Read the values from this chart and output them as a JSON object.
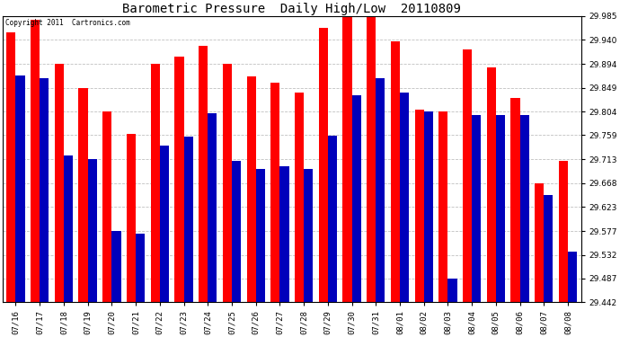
{
  "title": "Barometric Pressure  Daily High/Low  20110809",
  "copyright": "Copyright 2011  Cartronics.com",
  "dates": [
    "07/16",
    "07/17",
    "07/18",
    "07/19",
    "07/20",
    "07/21",
    "07/22",
    "07/23",
    "07/24",
    "07/25",
    "07/26",
    "07/27",
    "07/28",
    "07/29",
    "07/30",
    "07/31",
    "08/01",
    "08/02",
    "08/03",
    "08/04",
    "08/05",
    "08/06",
    "08/07",
    "08/08"
  ],
  "highs": [
    29.955,
    29.978,
    29.895,
    29.848,
    29.804,
    29.762,
    29.895,
    29.908,
    29.928,
    29.895,
    29.87,
    29.858,
    29.84,
    29.962,
    29.988,
    29.984,
    29.938,
    29.808,
    29.804,
    29.922,
    29.888,
    29.83,
    29.668,
    29.71
  ],
  "lows": [
    29.872,
    29.868,
    29.72,
    29.713,
    29.577,
    29.572,
    29.74,
    29.757,
    29.8,
    29.71,
    29.695,
    29.7,
    29.695,
    29.758,
    29.835,
    29.868,
    29.84,
    29.804,
    29.487,
    29.797,
    29.797,
    29.797,
    29.645,
    29.538
  ],
  "bar_color_high": "#ff0000",
  "bar_color_low": "#0000bb",
  "background": "#ffffff",
  "grid_color": "#c0c0c0",
  "yticks": [
    29.442,
    29.487,
    29.532,
    29.577,
    29.623,
    29.668,
    29.713,
    29.759,
    29.804,
    29.849,
    29.894,
    29.94,
    29.985
  ],
  "ymin": 29.442,
  "ymax": 29.985,
  "title_fontsize": 10,
  "tick_fontsize": 6.5,
  "copyright_fontsize": 5.5
}
